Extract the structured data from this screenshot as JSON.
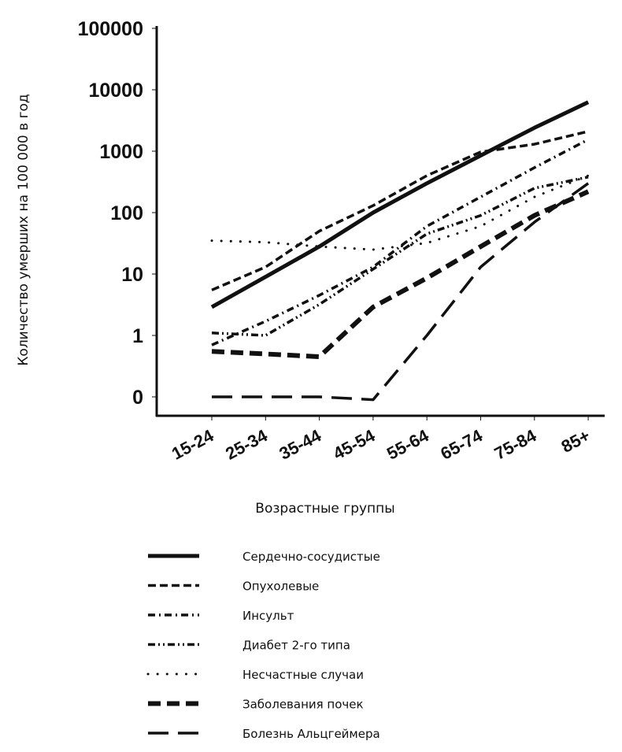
{
  "chart_data": {
    "type": "line",
    "title": "",
    "xlabel": "Возрастные группы",
    "ylabel": "Количество умерших на 100 000 в год",
    "yscale": "log",
    "ylim": [
      0.1,
      100000
    ],
    "yticks": [
      100000,
      10000,
      1000,
      100,
      10,
      1,
      0.1
    ],
    "ytick_labels": [
      "100000",
      "10000",
      "1000",
      "100",
      "10",
      "1",
      "0"
    ],
    "categories": [
      "15-24",
      "25-34",
      "35-44",
      "45-54",
      "55-64",
      "65-74",
      "75-84",
      "85+"
    ],
    "grid": false,
    "legend_placement": "bottom",
    "series": [
      {
        "name": "Сердечно-сосудистые",
        "style": "solid",
        "values": [
          2.9,
          9,
          28,
          100,
          300,
          850,
          2400,
          6300
        ]
      },
      {
        "name": "Опухолевые",
        "style": "dashed",
        "values": [
          5.5,
          13,
          50,
          130,
          400,
          970,
          1300,
          2100
        ]
      },
      {
        "name": "Инсульт",
        "style": "dash-dot",
        "values": [
          0.7,
          1.7,
          4.5,
          13,
          60,
          180,
          540,
          1550
        ]
      },
      {
        "name": "Диабет 2-го типа",
        "style": "dash-dot-dot",
        "values": [
          1.1,
          1.0,
          3.2,
          12,
          45,
          90,
          250,
          380
        ]
      },
      {
        "name": "Несчастные случаи",
        "style": "dotted",
        "values": [
          35,
          33,
          28,
          25,
          32,
          60,
          180,
          400
        ]
      },
      {
        "name": "Заболевания почек",
        "style": "thick-dashed",
        "values": [
          0.55,
          0.5,
          0.45,
          2.9,
          8.6,
          28,
          90,
          220
        ]
      },
      {
        "name": "Болезнь Альцгеймера",
        "style": "long-dashed",
        "values": [
          0.1,
          0.1,
          0.1,
          0.09,
          1.0,
          13,
          70,
          300
        ]
      }
    ]
  }
}
